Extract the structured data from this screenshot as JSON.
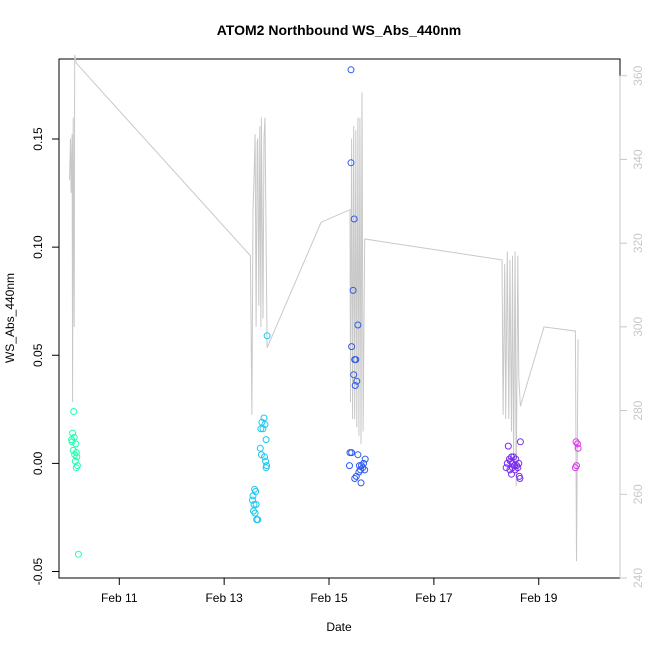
{
  "chart_data": {
    "type": "scatter",
    "title": "ATOM2 Northbound WS_Abs_440nm",
    "xlabel": "Date",
    "ylabel": "WS_Abs_440nm",
    "x_unit": "days in February",
    "xlim": [
      9.85,
      20.55
    ],
    "ylim": [
      -0.053,
      0.187
    ],
    "y2lim": [
      240,
      364
    ],
    "x_tick_values": [
      11,
      13,
      15,
      17,
      19
    ],
    "x_tick_labels": [
      "Feb 11",
      "Feb 13",
      "Feb 15",
      "Feb 17",
      "Feb 19"
    ],
    "y_tick_values": [
      -0.05,
      0.0,
      0.05,
      0.1,
      0.15
    ],
    "y_tick_labels": [
      "-0.05",
      "0.00",
      "0.05",
      "0.10",
      "0.15"
    ],
    "y2_tick_values": [
      240,
      260,
      280,
      300,
      320,
      340,
      360
    ],
    "y2_tick_labels": [
      "240",
      "260",
      "280",
      "300",
      "320",
      "340",
      "360"
    ],
    "grid": false,
    "legend": "none",
    "colors": {
      "axis": "#000000",
      "secondary_axis": "#c8c8c8",
      "line": "#c8c8c8"
    },
    "series": [
      {
        "kind": "points",
        "color": "#22ffb0",
        "points": [
          [
            10.13,
            0.024
          ],
          [
            10.09,
            0.011
          ],
          [
            10.11,
            0.014
          ],
          [
            10.14,
            0.012
          ],
          [
            10.1,
            0.01
          ],
          [
            10.17,
            0.009
          ],
          [
            10.12,
            0.006
          ],
          [
            10.18,
            0.005
          ],
          [
            10.15,
            0.004
          ],
          [
            10.19,
            0.003
          ],
          [
            10.16,
            0.001
          ],
          [
            10.2,
            -0.001
          ],
          [
            10.18,
            -0.002
          ],
          [
            10.22,
            -0.042
          ]
        ]
      },
      {
        "kind": "points",
        "color": "#18c8f0",
        "points": [
          [
            13.82,
            0.059
          ],
          [
            13.76,
            0.021
          ],
          [
            13.72,
            0.019
          ],
          [
            13.78,
            0.018
          ],
          [
            13.7,
            0.016
          ],
          [
            13.74,
            0.016
          ],
          [
            13.8,
            0.011
          ],
          [
            13.69,
            0.007
          ],
          [
            13.71,
            0.004
          ],
          [
            13.77,
            0.003
          ],
          [
            13.79,
            0.001
          ],
          [
            13.81,
            -0.001
          ],
          [
            13.8,
            -0.002
          ],
          [
            13.58,
            -0.012
          ],
          [
            13.6,
            -0.013
          ],
          [
            13.55,
            -0.015
          ],
          [
            13.54,
            -0.017
          ],
          [
            13.57,
            -0.019
          ],
          [
            13.61,
            -0.019
          ],
          [
            13.56,
            -0.022
          ],
          [
            13.59,
            -0.023
          ],
          [
            13.62,
            -0.026
          ],
          [
            13.64,
            -0.026
          ]
        ]
      },
      {
        "kind": "points",
        "color": "#2f5cf0",
        "points": [
          [
            15.42,
            0.182
          ],
          [
            15.42,
            0.139
          ],
          [
            15.48,
            0.113
          ],
          [
            15.46,
            0.08
          ],
          [
            15.55,
            0.064
          ],
          [
            15.43,
            0.054
          ],
          [
            15.49,
            0.048
          ],
          [
            15.51,
            0.048
          ],
          [
            15.47,
            0.041
          ],
          [
            15.53,
            0.038
          ],
          [
            15.5,
            0.036
          ],
          [
            15.4,
            0.005
          ],
          [
            15.43,
            0.005
          ],
          [
            15.55,
            0.004
          ],
          [
            15.69,
            0.002
          ],
          [
            15.39,
            -0.001
          ],
          [
            15.58,
            -0.001
          ],
          [
            15.62,
            -0.001
          ],
          [
            15.66,
            0.0
          ],
          [
            15.64,
            -0.002
          ],
          [
            15.6,
            -0.003
          ],
          [
            15.57,
            -0.004
          ],
          [
            15.68,
            -0.003
          ],
          [
            15.52,
            -0.006
          ],
          [
            15.49,
            -0.007
          ],
          [
            15.61,
            -0.009
          ]
        ]
      },
      {
        "kind": "points",
        "color": "#7a2cf0",
        "points": [
          [
            18.42,
            0.008
          ],
          [
            18.65,
            0.01
          ],
          [
            18.44,
            0.002
          ],
          [
            18.48,
            0.003
          ],
          [
            18.52,
            0.003
          ],
          [
            18.56,
            0.002
          ],
          [
            18.4,
            0.0
          ],
          [
            18.46,
            0.001
          ],
          [
            18.5,
            0.0
          ],
          [
            18.54,
            -0.001
          ],
          [
            18.58,
            -0.001
          ],
          [
            18.62,
            0.0
          ],
          [
            18.38,
            -0.002
          ],
          [
            18.45,
            -0.003
          ],
          [
            18.5,
            -0.002
          ],
          [
            18.55,
            -0.003
          ],
          [
            18.6,
            -0.002
          ],
          [
            18.48,
            -0.005
          ],
          [
            18.63,
            -0.006
          ],
          [
            18.64,
            -0.007
          ]
        ]
      },
      {
        "kind": "points",
        "color": "#d838e8",
        "points": [
          [
            19.71,
            0.01
          ],
          [
            19.74,
            0.009
          ],
          [
            19.75,
            0.007
          ],
          [
            19.72,
            -0.001
          ],
          [
            19.7,
            -0.002
          ]
        ]
      },
      {
        "kind": "line",
        "axis": "secondary",
        "color": "#c8c8c8",
        "points": [
          [
            10.05,
            335
          ],
          [
            10.07,
            345
          ],
          [
            10.08,
            332
          ],
          [
            10.1,
            346
          ],
          [
            10.11,
            282
          ],
          [
            10.12,
            350
          ],
          [
            10.14,
            300
          ],
          [
            10.15,
            365
          ],
          [
            10.18,
            363
          ],
          [
            13.5,
            317
          ],
          [
            13.53,
            279
          ],
          [
            13.55,
            328
          ],
          [
            13.57,
            335
          ],
          [
            13.59,
            346
          ],
          [
            13.61,
            300
          ],
          [
            13.63,
            344
          ],
          [
            13.64,
            345
          ],
          [
            13.66,
            305
          ],
          [
            13.68,
            348
          ],
          [
            13.7,
            300
          ],
          [
            13.71,
            350
          ],
          [
            13.74,
            302
          ],
          [
            13.76,
            345
          ],
          [
            13.78,
            350
          ],
          [
            13.82,
            295
          ],
          [
            14.85,
            325
          ],
          [
            15.4,
            328
          ],
          [
            15.41,
            282
          ],
          [
            15.43,
            345
          ],
          [
            15.45,
            278
          ],
          [
            15.47,
            348
          ],
          [
            15.49,
            278
          ],
          [
            15.51,
            347
          ],
          [
            15.53,
            276
          ],
          [
            15.55,
            350
          ],
          [
            15.57,
            274
          ],
          [
            15.59,
            350
          ],
          [
            15.61,
            272
          ],
          [
            15.63,
            356
          ],
          [
            15.65,
            275
          ],
          [
            15.68,
            321
          ],
          [
            18.3,
            316
          ],
          [
            18.32,
            279
          ],
          [
            18.35,
            315
          ],
          [
            18.37,
            278
          ],
          [
            18.4,
            318
          ],
          [
            18.43,
            278
          ],
          [
            18.45,
            316
          ],
          [
            18.48,
            275
          ],
          [
            18.5,
            317
          ],
          [
            18.52,
            268
          ],
          [
            18.55,
            318
          ],
          [
            18.57,
            262
          ],
          [
            18.6,
            317
          ],
          [
            18.62,
            288
          ],
          [
            18.65,
            281
          ],
          [
            19.1,
            300
          ],
          [
            19.7,
            299
          ],
          [
            19.72,
            244
          ],
          [
            19.75,
            297
          ]
        ]
      }
    ]
  }
}
